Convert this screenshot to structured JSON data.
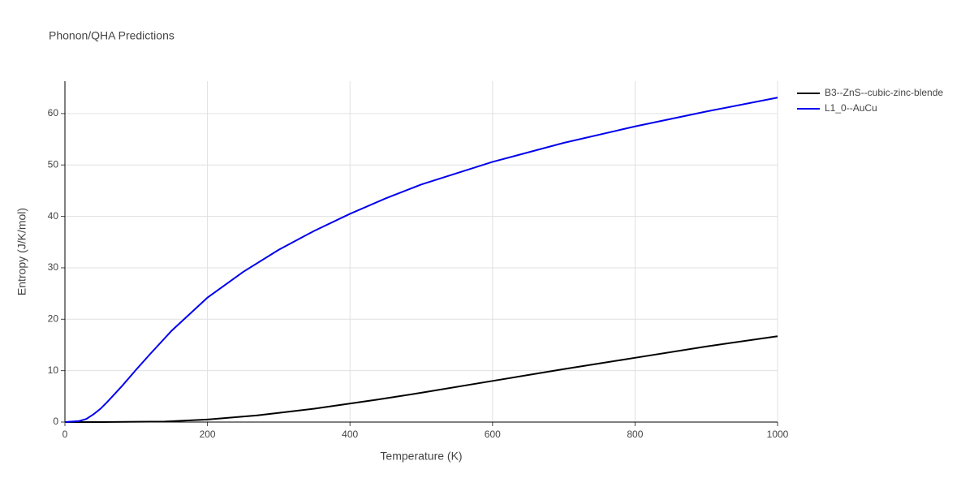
{
  "chart_data": {
    "type": "line",
    "title": "Phonon/QHA Predictions",
    "x_label": "Temperature (K)",
    "y_label": "Entropy (J/K/mol)",
    "xlim": [
      0,
      1000
    ],
    "ylim": [
      0,
      66.3
    ],
    "xticks": [
      0,
      200,
      400,
      600,
      800,
      1000
    ],
    "yticks": [
      0,
      10,
      20,
      30,
      40,
      50,
      60
    ],
    "grid": true,
    "legend": "outside-right",
    "series": [
      {
        "name": "B3--ZnS--cubic-zinc-blende",
        "color": "#000000",
        "x": [
          0,
          50,
          100,
          140,
          200,
          270,
          350,
          440,
          500,
          600,
          700,
          800,
          900,
          1000
        ],
        "values": [
          0,
          0,
          0.05,
          0.1,
          0.5,
          1.3,
          2.6,
          4.4,
          5.7,
          8,
          10.3,
          12.5,
          14.7,
          16.7
        ]
      },
      {
        "name": "L1_0--AuCu",
        "color": "#0000ee",
        "x": [
          0,
          20,
          30,
          40,
          50,
          60,
          80,
          100,
          120,
          150,
          200,
          250,
          300,
          350,
          400,
          450,
          500,
          600,
          700,
          800,
          900,
          1000
        ],
        "values": [
          0,
          0.2,
          0.6,
          1.5,
          2.6,
          4,
          7,
          10.2,
          13.3,
          17.8,
          24.2,
          29.2,
          33.5,
          37.2,
          40.5,
          43.5,
          46.2,
          50.6,
          54.3,
          57.5,
          60.4,
          63.1
        ]
      }
    ]
  }
}
